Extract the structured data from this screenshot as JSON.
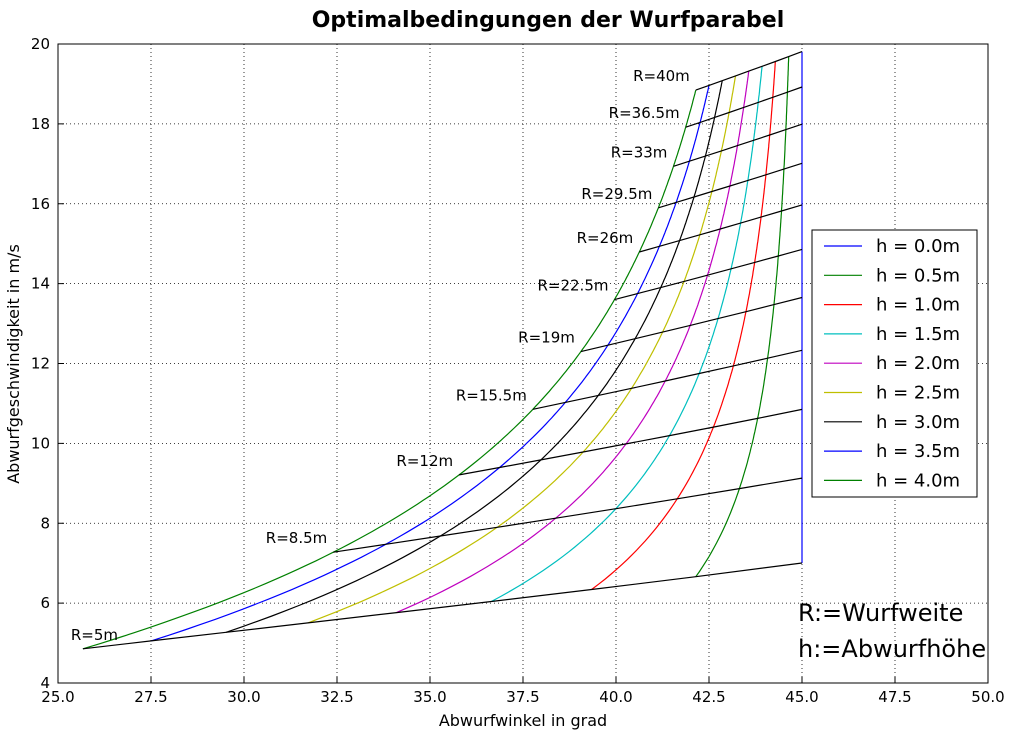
{
  "chart_data": {
    "type": "line",
    "title": "Optimalbedingungen der Wurfparabel",
    "xlabel": "Abwurfwinkel in grad",
    "ylabel": "Abwurfgeschwindigkeit in m/s",
    "xlim": [
      25,
      50
    ],
    "ylim": [
      4,
      20
    ],
    "xticks": [
      "25.0",
      "27.5",
      "30.0",
      "32.5",
      "35.0",
      "37.5",
      "40.0",
      "42.5",
      "45.0",
      "47.5",
      "50.0"
    ],
    "yticks": [
      "4",
      "6",
      "8",
      "10",
      "12",
      "14",
      "16",
      "18",
      "20"
    ],
    "grid": true,
    "legend_position": "center-right",
    "series": [
      {
        "name": "h = 0.0m",
        "h": 0.0,
        "color": "#0000ff"
      },
      {
        "name": "h = 0.5m",
        "h": 0.5,
        "color": "#008000"
      },
      {
        "name": "h = 1.0m",
        "h": 1.0,
        "color": "#ff0000"
      },
      {
        "name": "h = 1.5m",
        "h": 1.5,
        "color": "#00bfbf"
      },
      {
        "name": "h = 2.0m",
        "h": 2.0,
        "color": "#bf00bf"
      },
      {
        "name": "h = 2.5m",
        "h": 2.5,
        "color": "#bfbf00"
      },
      {
        "name": "h = 3.0m",
        "h": 3.0,
        "color": "#000000"
      },
      {
        "name": "h = 3.5m",
        "h": 3.5,
        "color": "#0000ff"
      },
      {
        "name": "h = 4.0m",
        "h": 4.0,
        "color": "#008000"
      }
    ],
    "range_lines": [
      {
        "label": "R=5m",
        "R": 5
      },
      {
        "label": "R=8.5m",
        "R": 8.5
      },
      {
        "label": "R=12m",
        "R": 12
      },
      {
        "label": "R=15.5m",
        "R": 15.5
      },
      {
        "label": "R=19m",
        "R": 19
      },
      {
        "label": "R=22.5m",
        "R": 22.5
      },
      {
        "label": "R=26m",
        "R": 26
      },
      {
        "label": "R=29.5m",
        "R": 29.5
      },
      {
        "label": "R=33m",
        "R": 33
      },
      {
        "label": "R=36.5m",
        "R": 36.5
      },
      {
        "label": "R=40m",
        "R": 40
      }
    ],
    "annotations": [
      "R:=Wurfweite",
      "h:=Abwurfhöhe"
    ]
  }
}
